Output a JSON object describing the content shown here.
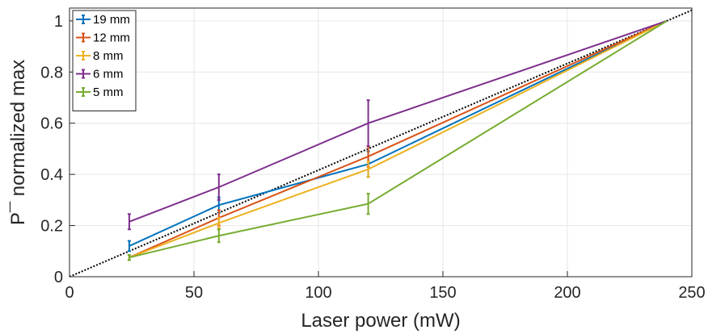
{
  "chart_data": {
    "type": "line",
    "xlabel": "Laser power (mW)",
    "ylabel": "P¯ normalized max",
    "xlim": [
      0,
      250
    ],
    "ylim": [
      0,
      1.05
    ],
    "x_ticks": [
      0,
      50,
      100,
      150,
      200,
      250
    ],
    "y_ticks": [
      0,
      0.2,
      0.4,
      0.6,
      0.8,
      1
    ],
    "x_tick_labels": [
      "0",
      "50",
      "100",
      "150",
      "200",
      "250"
    ],
    "y_tick_labels": [
      "0",
      "0.2",
      "0.4",
      "0.6",
      "0.8",
      "1"
    ],
    "grid": true,
    "legend_position": "top-left",
    "reference_line": {
      "style": "dotted",
      "color": "#000000",
      "x": [
        0,
        250
      ],
      "y": [
        0,
        1.0417
      ]
    },
    "x": [
      24,
      60,
      120,
      240
    ],
    "series": [
      {
        "name": "19 mm",
        "color": "#0072BD",
        "values": [
          0.12,
          0.28,
          0.44,
          1.0
        ],
        "errors": [
          0.02,
          0.03,
          0.05,
          0
        ]
      },
      {
        "name": "12 mm",
        "color": "#D95319",
        "values": [
          0.075,
          0.23,
          0.47,
          1.0
        ],
        "errors": [
          0.01,
          0.03,
          0.04,
          0
        ]
      },
      {
        "name": "8 mm",
        "color": "#EDB120",
        "values": [
          0.075,
          0.21,
          0.42,
          1.0
        ],
        "errors": [
          0.01,
          0.02,
          0.03,
          0
        ]
      },
      {
        "name": "6 mm",
        "color": "#7E2F8E",
        "values": [
          0.215,
          0.35,
          0.6,
          1.0
        ],
        "errors": [
          0.03,
          0.05,
          0.09,
          0
        ]
      },
      {
        "name": "5 mm",
        "color": "#77AC30",
        "values": [
          0.075,
          0.16,
          0.285,
          1.0
        ],
        "errors": [
          0.01,
          0.025,
          0.04,
          0
        ]
      }
    ]
  }
}
